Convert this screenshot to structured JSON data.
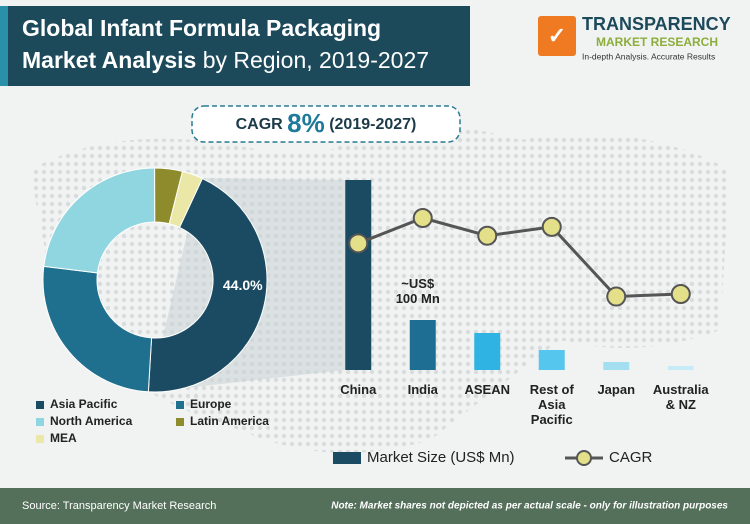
{
  "header": {
    "title_line1": "Global Infant Formula Packaging",
    "title_bold": "Market Analysis",
    "title_rest": "by Region, 2019-2027"
  },
  "logo": {
    "name": "TRANSPARENCY",
    "subname": "MARKET RESEARCH",
    "tagline": "In-depth Analysis. Accurate Results"
  },
  "cagr_badge": {
    "label": "CAGR",
    "value": "8%",
    "period": "(2019-2027)"
  },
  "chart_data": [
    {
      "type": "donut",
      "categories": [
        "Asia Pacific",
        "Europe",
        "North America",
        "Latin America",
        "MEA"
      ],
      "values": [
        44.0,
        26,
        23,
        4,
        3
      ],
      "value_labels": [
        "44.0%",
        null,
        null,
        null,
        null
      ],
      "colors": [
        "#1b4b62",
        "#1f6f8e",
        "#8fd6e1",
        "#8d8b2c",
        "#ebe7a6"
      ]
    },
    {
      "type": "bar",
      "categories": [
        "China",
        "India",
        "ASEAN",
        "Rest of Asia Pacific",
        "Japan",
        "Australia & NZ"
      ],
      "ylim": [
        0,
        380
      ],
      "y2lim": [
        0,
        15
      ],
      "series": [
        {
          "name": "Market Size (US$ Mn)",
          "type": "bar",
          "color": "#1b4b62",
          "colors": [
            "#1b4b62",
            "#1e6e93",
            "#2fb3e3",
            "#55c6ee",
            "#a4def1",
            "#c8ecf7"
          ],
          "values": [
            380,
            100,
            74,
            40,
            16,
            8
          ],
          "value_labels": [
            null,
            "~US$ 100 Mn",
            null,
            null,
            null,
            null
          ]
        },
        {
          "name": "CAGR",
          "type": "line",
          "axis": "y2",
          "color": "#555555",
          "marker_color": "#e4e08a",
          "values": [
            10.0,
            12.0,
            10.6,
            11.3,
            5.8,
            6.0
          ]
        }
      ]
    }
  ],
  "footer": {
    "source": "Source: Transparency Market Research",
    "note": "Note: Market shares not depicted as per actual scale - only for illustration purposes"
  }
}
